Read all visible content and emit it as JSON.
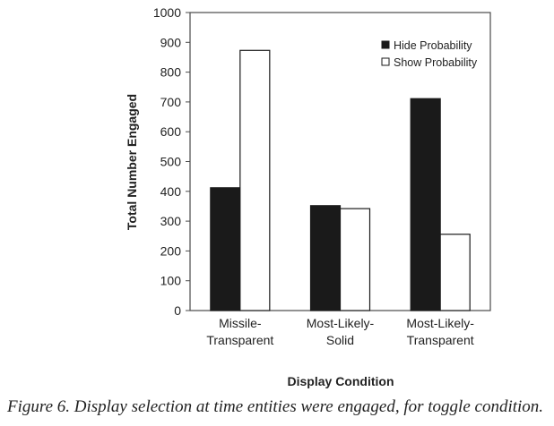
{
  "chart_data": {
    "type": "bar",
    "title": "",
    "xlabel": "Display Condition",
    "ylabel": "Total Number Engaged",
    "categories": [
      [
        "Missile-",
        "Transparent"
      ],
      [
        "Most-Likely-",
        "Solid"
      ],
      [
        "Most-Likely-",
        "Transparent"
      ]
    ],
    "series": [
      {
        "name": "Hide Probability",
        "color": "#1a1a1a",
        "values": [
          412,
          352,
          711
        ]
      },
      {
        "name": "Show Probability",
        "color": "#ffffff",
        "values": [
          873,
          342,
          256
        ]
      }
    ],
    "ylim": [
      0,
      1000
    ],
    "yticks": [
      0,
      100,
      200,
      300,
      400,
      500,
      600,
      700,
      800,
      900,
      1000
    ],
    "ytick_labels": [
      "0",
      "100",
      "200",
      "300",
      "400",
      "500",
      "600",
      "700",
      "800",
      "900",
      "1000"
    ],
    "grid": false,
    "legend_position": "top-right"
  },
  "caption": "Figure 6. Display selection at time entities were engaged, for toggle condition."
}
